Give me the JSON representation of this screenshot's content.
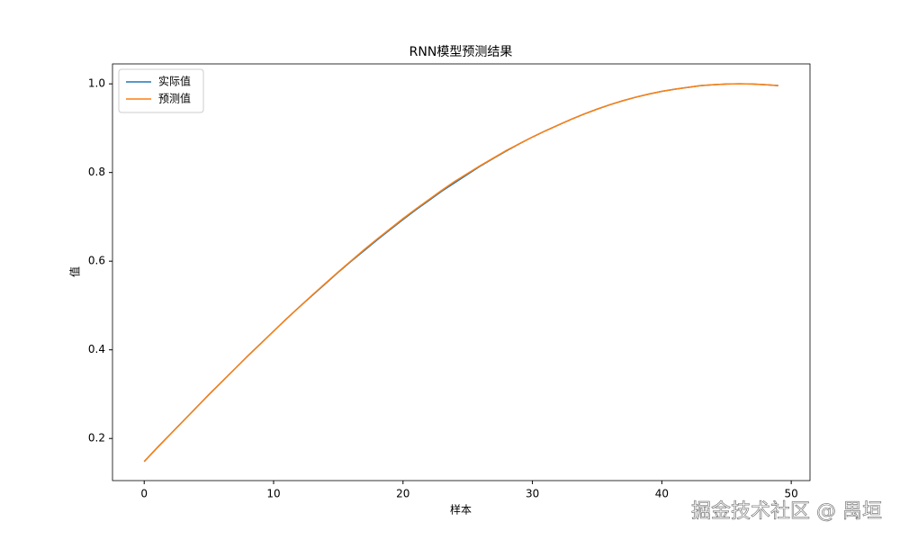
{
  "chart_data": {
    "type": "line",
    "title": "RNN模型预测结果",
    "x_label": "样本",
    "y_label": "值",
    "x": [
      0,
      1,
      2,
      3,
      4,
      5,
      6,
      7,
      8,
      9,
      10,
      11,
      12,
      13,
      14,
      15,
      16,
      17,
      18,
      19,
      20,
      21,
      22,
      23,
      24,
      25,
      26,
      27,
      28,
      29,
      30,
      31,
      32,
      33,
      34,
      35,
      36,
      37,
      38,
      39,
      40,
      41,
      42,
      43,
      44,
      45,
      46,
      47,
      48,
      49
    ],
    "series": [
      {
        "name": "实际值",
        "color": "#1f77b4",
        "values": [
          0.148,
          0.179,
          0.209,
          0.239,
          0.269,
          0.299,
          0.328,
          0.357,
          0.386,
          0.414,
          0.442,
          0.47,
          0.497,
          0.523,
          0.549,
          0.575,
          0.6,
          0.624,
          0.648,
          0.671,
          0.694,
          0.716,
          0.737,
          0.758,
          0.777,
          0.796,
          0.815,
          0.832,
          0.849,
          0.865,
          0.88,
          0.894,
          0.907,
          0.92,
          0.932,
          0.943,
          0.953,
          0.962,
          0.97,
          0.977,
          0.983,
          0.988,
          0.992,
          0.996,
          0.998,
          0.9995,
          1.0,
          0.9995,
          0.998,
          0.996
        ]
      },
      {
        "name": "预测值",
        "color": "#ff7f0e",
        "values": [
          0.148,
          0.179,
          0.209,
          0.239,
          0.269,
          0.299,
          0.328,
          0.357,
          0.386,
          0.414,
          0.442,
          0.47,
          0.497,
          0.524,
          0.55,
          0.576,
          0.601,
          0.626,
          0.65,
          0.673,
          0.696,
          0.718,
          0.739,
          0.76,
          0.78,
          0.798,
          0.816,
          0.833,
          0.85,
          0.865,
          0.88,
          0.894,
          0.907,
          0.92,
          0.932,
          0.943,
          0.953,
          0.962,
          0.97,
          0.977,
          0.983,
          0.988,
          0.992,
          0.996,
          0.998,
          0.9995,
          1.0,
          0.9995,
          0.998,
          0.996
        ]
      }
    ],
    "xlim": [
      -2.45,
      51.45
    ],
    "ylim": [
      0.105,
      1.045
    ],
    "xticks": [
      0,
      10,
      20,
      30,
      40,
      50
    ],
    "yticks": [
      0.2,
      0.4,
      0.6,
      0.8,
      {
        "value": 1,
        "label": "1.0"
      }
    ],
    "legend": "upper left",
    "grid": false
  },
  "watermark": "掘金技术社区 @ 禺垣"
}
